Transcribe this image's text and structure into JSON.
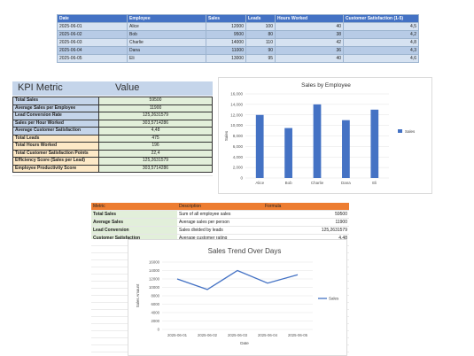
{
  "top_table": {
    "headers": [
      "Date",
      "Employee",
      "Sales",
      "Leads",
      "Hours Worked",
      "Customer Satisfaction (1-5)"
    ],
    "rows": [
      [
        "2025-06-01",
        "Alice",
        "12000",
        "100",
        "40",
        "4,5"
      ],
      [
        "2025-06-02",
        "Bob",
        "9500",
        "80",
        "38",
        "4,2"
      ],
      [
        "2025-06-03",
        "Charlie",
        "14000",
        "110",
        "42",
        "4,8"
      ],
      [
        "2025-06-04",
        "Dana",
        "11000",
        "90",
        "36",
        "4,3"
      ],
      [
        "2025-06-05",
        "Eli",
        "13000",
        "95",
        "40",
        "4,6"
      ]
    ]
  },
  "kpi": {
    "title": "KPI Metric",
    "value_header": "Value",
    "rows": [
      {
        "label": "Total Sales",
        "value": "59500",
        "group": "a"
      },
      {
        "label": "Average Sales per Employee",
        "value": "11900",
        "group": "a"
      },
      {
        "label": "Lead Conversion Rate",
        "value": "125,2631579",
        "group": "a"
      },
      {
        "label": "Sales per Hour Worked",
        "value": "303,5714286",
        "group": "a"
      },
      {
        "label": "Average Customer Satisfaction",
        "value": "4,48",
        "group": "a"
      },
      {
        "label": "Total Leads",
        "value": "475",
        "group": "b"
      },
      {
        "label": "Total Hours Worked",
        "value": "196",
        "group": "b"
      },
      {
        "label": "Total Customer Satisfaction Points",
        "value": "22,4",
        "group": "b"
      },
      {
        "label": "Efficiency Score (Sales per Lead)",
        "value": "125,2631579",
        "group": "b"
      },
      {
        "label": "Employee Productivity Score",
        "value": "303,5714286",
        "group": "b"
      }
    ]
  },
  "metric_table": {
    "headers": [
      "Metric",
      "Description",
      "Formula"
    ],
    "rows": [
      [
        "Total Sales",
        "Sum of all employee sales",
        "59500"
      ],
      [
        "Average Sales",
        "Average sales per person",
        "11900"
      ],
      [
        "Lead Conversion",
        "Sales divided by leads",
        "125,2631579"
      ],
      [
        "Customer Satisfaction",
        "Average customer rating",
        "4,48"
      ]
    ]
  },
  "bar_chart_data": {
    "type": "bar",
    "title": "Sales by Employee",
    "categories": [
      "Alice",
      "Bob",
      "Charlie",
      "Dana",
      "Eli"
    ],
    "series": [
      {
        "name": "Sales",
        "values": [
          12000,
          9500,
          14000,
          11000,
          13000
        ],
        "color": "#4472c4"
      }
    ],
    "ylabel": "Sales",
    "ylim": [
      0,
      16000
    ],
    "yticks": [
      "0",
      "2,000",
      "4,000",
      "6,000",
      "8,000",
      "10,000",
      "12,000",
      "14,000",
      "16,000"
    ],
    "legend": "right",
    "grid": true
  },
  "line_chart_data": {
    "type": "line",
    "title": "Sales Trend Over Days",
    "categories": [
      "2025-06-01",
      "2025-06-02",
      "2025-06-03",
      "2025-06-04",
      "2025-06-05"
    ],
    "series": [
      {
        "name": "Sales",
        "values": [
          12000,
          9500,
          14000,
          11000,
          13000
        ],
        "color": "#4472c4"
      }
    ],
    "xlabel": "Date",
    "ylabel": "Sales Amount",
    "ylim": [
      0,
      16000
    ],
    "yticks": [
      "0",
      "2000",
      "4000",
      "6000",
      "8000",
      "10000",
      "12000",
      "14000",
      "16000"
    ],
    "legend": "right",
    "grid": true
  }
}
